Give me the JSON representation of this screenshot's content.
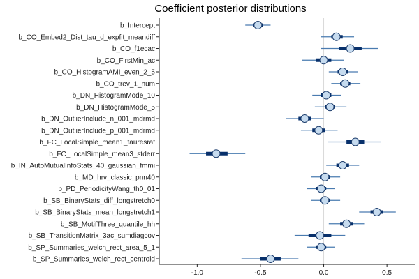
{
  "chart_data": {
    "type": "interval",
    "title": "Coefficient posterior distributions",
    "xlabel": "",
    "ylabel": "",
    "xlim": [
      -1.3,
      0.72
    ],
    "xticks": [
      -1.0,
      -0.5,
      0.0,
      0.5
    ],
    "xtick_labels": [
      "-1.0",
      "-0.5",
      "0.0",
      "0.5"
    ],
    "reference_line": 0.0,
    "colors": {
      "outer": "#4a7bb0",
      "inner": "#08306b",
      "point_fill": "#c6dbef",
      "point_stroke": "#1f3f6e",
      "reference": "#d9d9d9",
      "axis": "#222222"
    },
    "coefficients": [
      {
        "name": "b_Intercept",
        "median": -0.52,
        "inner": [
          -0.56,
          -0.48
        ],
        "outer": [
          -0.62,
          -0.42
        ]
      },
      {
        "name": "b_CO_Embed2_Dist_tau_d_expfit_meandiff",
        "median": 0.1,
        "inner": [
          0.06,
          0.15
        ],
        "outer": [
          -0.02,
          0.24
        ]
      },
      {
        "name": "b_CO_f1ecac",
        "median": 0.21,
        "inner": [
          0.12,
          0.3
        ],
        "outer": [
          -0.02,
          0.43
        ]
      },
      {
        "name": "b_CO_FirstMin_ac",
        "median": 0.0,
        "inner": [
          -0.06,
          0.06
        ],
        "outer": [
          -0.17,
          0.16
        ]
      },
      {
        "name": "b_CO_HistogramAMI_even_2_5",
        "median": 0.15,
        "inner": [
          0.11,
          0.19
        ],
        "outer": [
          0.04,
          0.27
        ]
      },
      {
        "name": "b_CO_trev_1_num",
        "median": 0.17,
        "inner": [
          0.13,
          0.21
        ],
        "outer": [
          0.06,
          0.29
        ]
      },
      {
        "name": "b_DN_HistogramMode_10",
        "median": 0.02,
        "inner": [
          -0.02,
          0.06
        ],
        "outer": [
          -0.09,
          0.14
        ]
      },
      {
        "name": "b_DN_HistogramMode_5",
        "median": 0.05,
        "inner": [
          0.01,
          0.09
        ],
        "outer": [
          -0.07,
          0.18
        ]
      },
      {
        "name": "b_DN_OutlierInclude_n_001_mdrmd",
        "median": -0.15,
        "inner": [
          -0.2,
          -0.1
        ],
        "outer": [
          -0.3,
          0.0
        ]
      },
      {
        "name": "b_DN_OutlierInclude_p_001_mdrmd",
        "median": -0.04,
        "inner": [
          -0.09,
          0.01
        ],
        "outer": [
          -0.18,
          0.11
        ]
      },
      {
        "name": "b_FC_LocalSimple_mean1_tauresrat",
        "median": 0.25,
        "inner": [
          0.18,
          0.32
        ],
        "outer": [
          0.03,
          0.45
        ]
      },
      {
        "name": "b_FC_LocalSimple_mean3_stderr",
        "median": -0.85,
        "inner": [
          -0.93,
          -0.76
        ],
        "outer": [
          -1.06,
          -0.62
        ]
      },
      {
        "name": "b_IN_AutoMutualInfoStats_40_gaussian_fmmi",
        "median": 0.15,
        "inner": [
          0.1,
          0.2
        ],
        "outer": [
          0.02,
          0.28
        ]
      },
      {
        "name": "b_MD_hrv_classic_pnn40",
        "median": 0.01,
        "inner": [
          -0.03,
          0.05
        ],
        "outer": [
          -0.1,
          0.13
        ]
      },
      {
        "name": "b_PD_PeriodicityWang_th0_01",
        "median": -0.02,
        "inner": [
          -0.06,
          0.02
        ],
        "outer": [
          -0.13,
          0.09
        ]
      },
      {
        "name": "b_SB_BinaryStats_diff_longstretch0",
        "median": 0.01,
        "inner": [
          -0.03,
          0.05
        ],
        "outer": [
          -0.1,
          0.13
        ]
      },
      {
        "name": "b_SB_BinaryStats_mean_longstretch1",
        "median": 0.42,
        "inner": [
          0.37,
          0.47
        ],
        "outer": [
          0.28,
          0.57
        ]
      },
      {
        "name": "b_SB_MotifThree_quantile_hh",
        "median": 0.18,
        "inner": [
          0.13,
          0.23
        ],
        "outer": [
          0.04,
          0.32
        ]
      },
      {
        "name": "b_SB_TransitionMatrix_3ac_sumdiagcov",
        "median": -0.03,
        "inner": [
          -0.12,
          0.06
        ],
        "outer": [
          -0.23,
          0.17
        ]
      },
      {
        "name": "b_SP_Summaries_welch_rect_area_5_1",
        "median": -0.02,
        "inner": [
          -0.06,
          0.02
        ],
        "outer": [
          -0.13,
          0.09
        ]
      },
      {
        "name": "b_SP_Summaries_welch_rect_centroid",
        "median": -0.42,
        "inner": [
          -0.5,
          -0.34
        ],
        "outer": [
          -0.65,
          -0.2
        ]
      }
    ]
  }
}
